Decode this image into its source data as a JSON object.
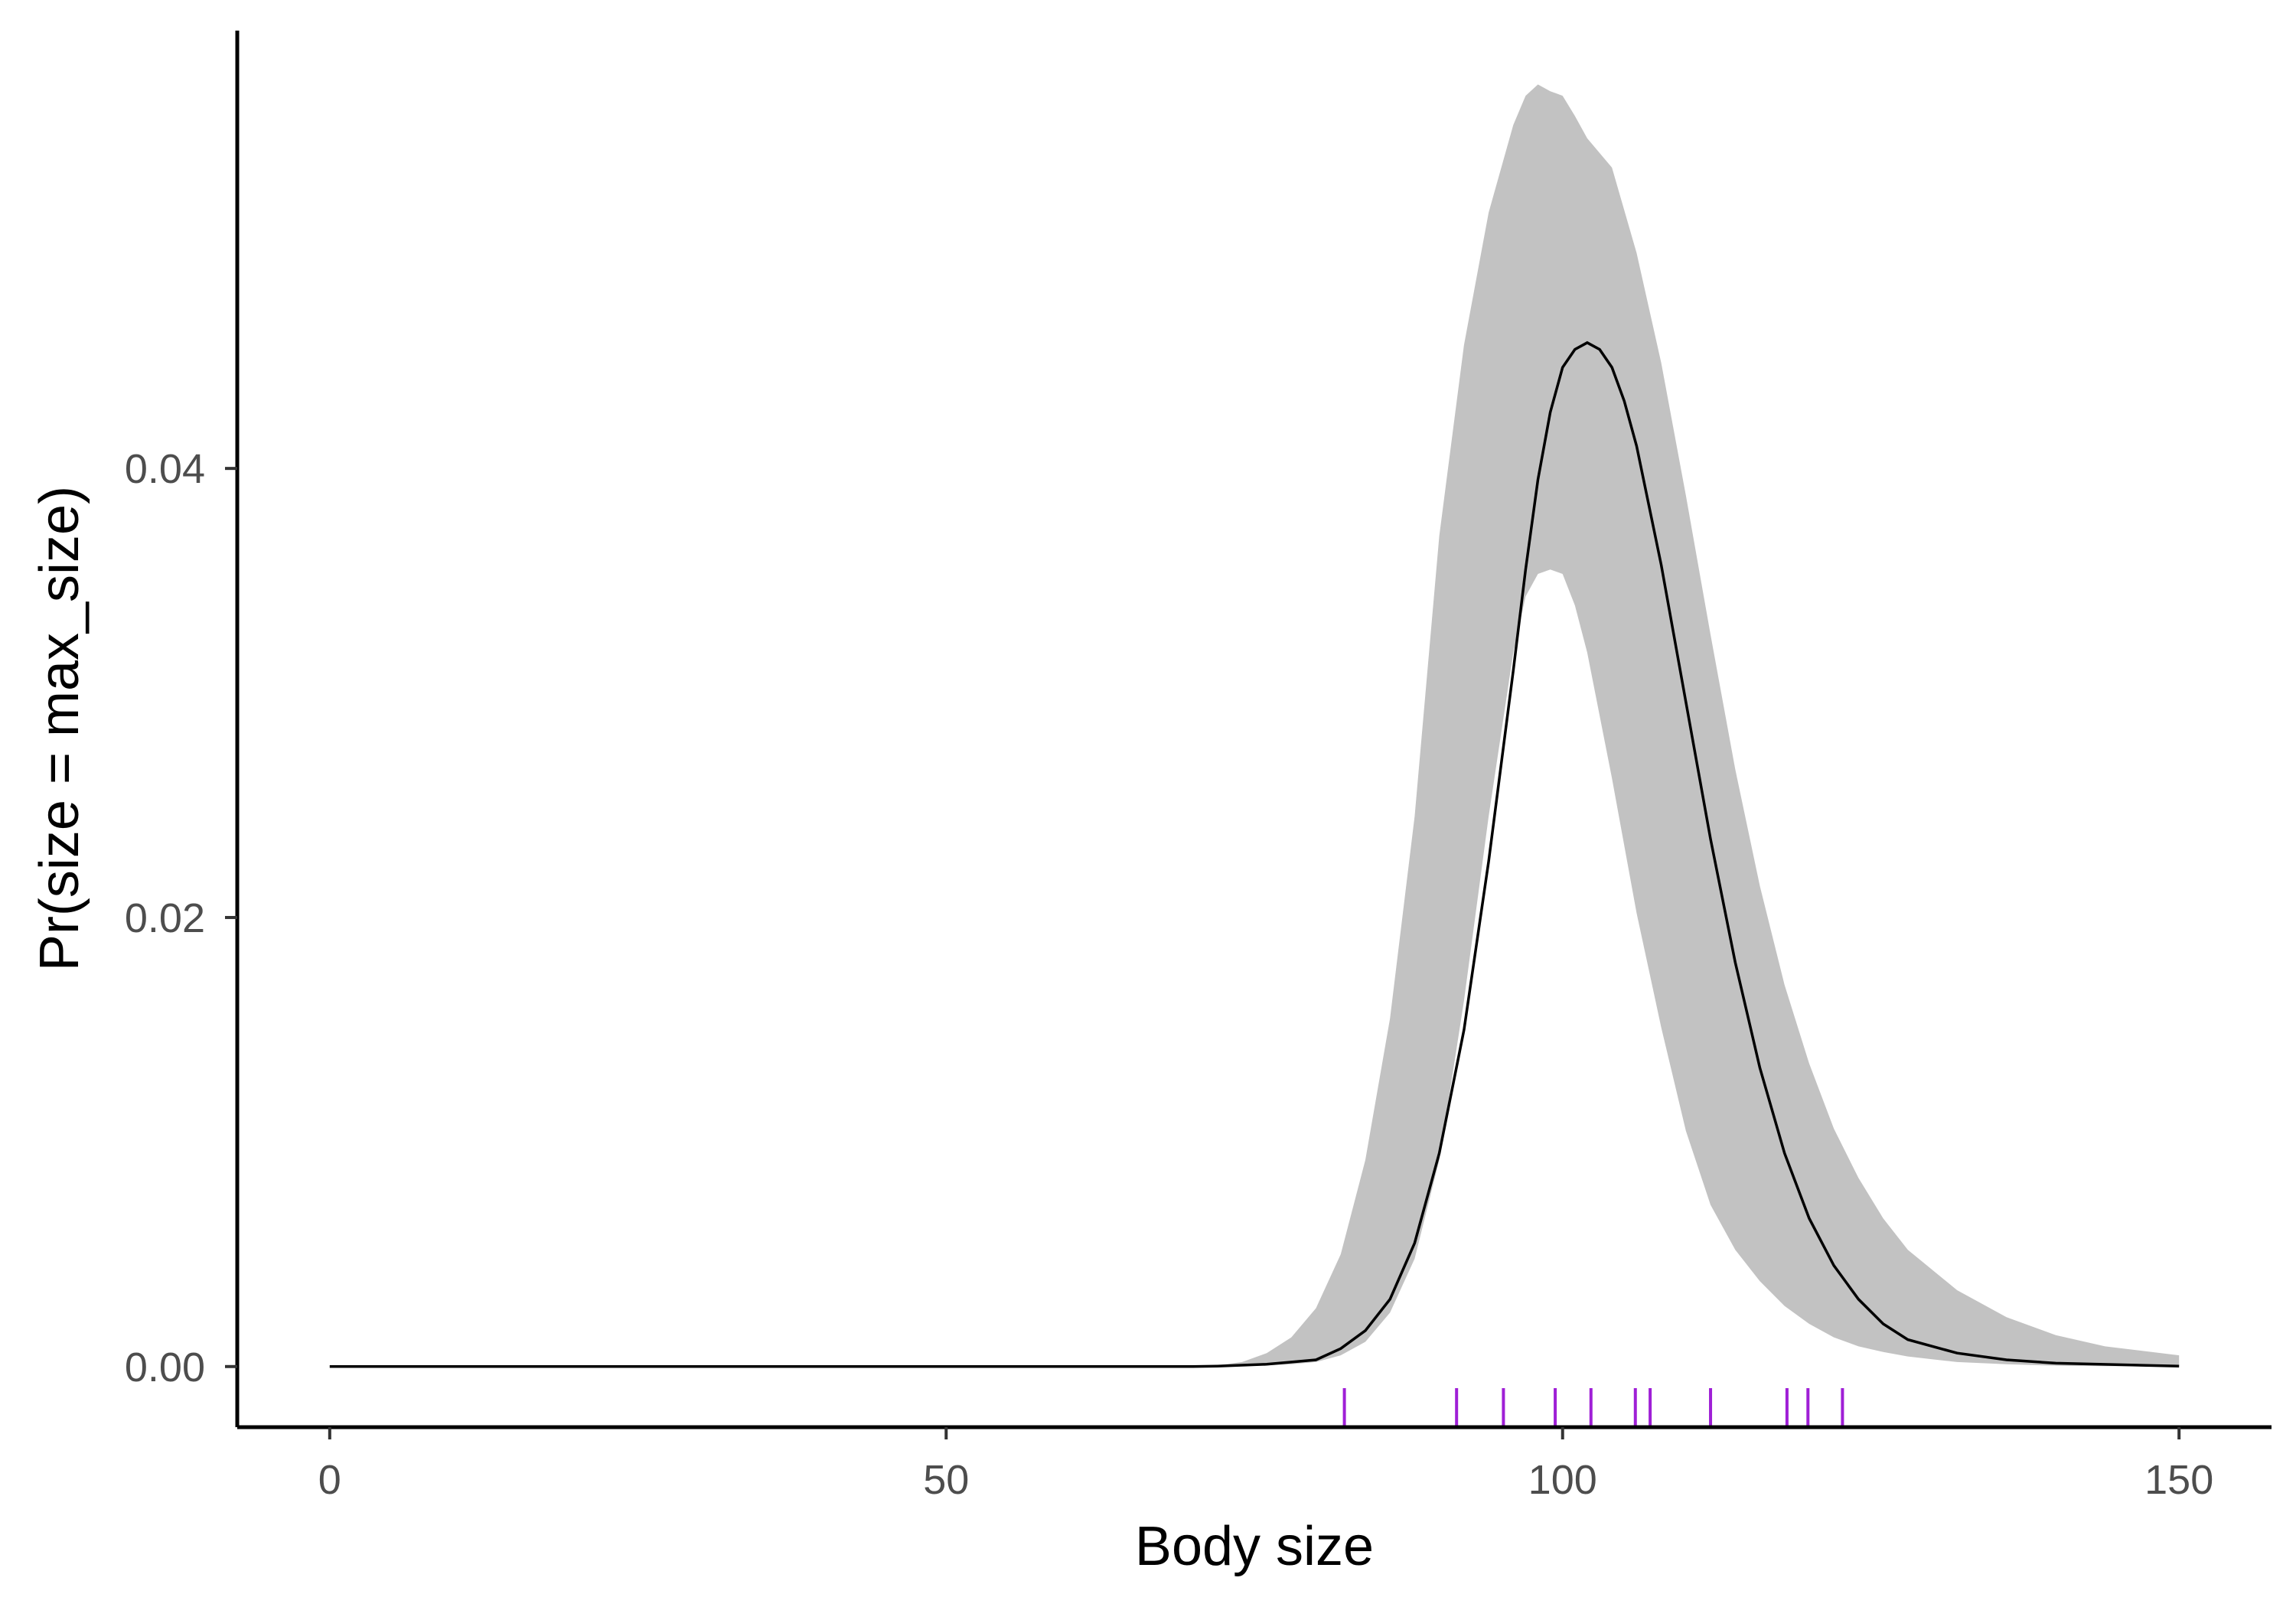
{
  "chart_data": {
    "type": "line",
    "xlabel": "Body size",
    "ylabel": "Pr(size = max_size)",
    "xlim": [
      -7.5,
      157.5
    ],
    "ylim": [
      -0.0027,
      0.0595
    ],
    "x_ticks": [
      0,
      50,
      100,
      150
    ],
    "x_tick_labels": [
      "0",
      "50",
      "100",
      "150"
    ],
    "y_ticks": [
      0.0,
      0.02,
      0.04
    ],
    "y_tick_labels": [
      "0.00",
      "0.02",
      "0.04"
    ],
    "grid": false,
    "legend": "none",
    "series": [
      {
        "role": "mean",
        "points": [
          [
            0,
            0
          ],
          [
            70,
            0
          ],
          [
            72,
            2e-05
          ],
          [
            76,
            0.0001
          ],
          [
            80,
            0.0003
          ],
          [
            82,
            0.0008
          ],
          [
            84,
            0.0016
          ],
          [
            86,
            0.003
          ],
          [
            88,
            0.0055
          ],
          [
            90,
            0.0095
          ],
          [
            92,
            0.015
          ],
          [
            94,
            0.0225
          ],
          [
            96,
            0.031
          ],
          [
            97,
            0.0355
          ],
          [
            98,
            0.0395
          ],
          [
            99,
            0.0425
          ],
          [
            100,
            0.0445
          ],
          [
            101,
            0.0453
          ],
          [
            102,
            0.0456
          ],
          [
            103,
            0.0453
          ],
          [
            104,
            0.0445
          ],
          [
            105,
            0.043
          ],
          [
            106,
            0.041
          ],
          [
            108,
            0.0357
          ],
          [
            110,
            0.0296
          ],
          [
            112,
            0.0235
          ],
          [
            114,
            0.018
          ],
          [
            116,
            0.0133
          ],
          [
            118,
            0.0095
          ],
          [
            120,
            0.0066
          ],
          [
            122,
            0.0045
          ],
          [
            124,
            0.003
          ],
          [
            126,
            0.0019
          ],
          [
            128,
            0.0012
          ],
          [
            132,
            0.0006
          ],
          [
            136,
            0.0003
          ],
          [
            140,
            0.00015
          ],
          [
            150,
            2e-05
          ]
        ]
      },
      {
        "role": "interval",
        "points": [
          [
            0,
            0,
            0
          ],
          [
            70,
            0,
            0
          ],
          [
            72,
            0,
            5e-05
          ],
          [
            74,
            2e-05,
            0.0002
          ],
          [
            76,
            5e-05,
            0.0006
          ],
          [
            78,
            0.0001,
            0.0013
          ],
          [
            80,
            0.0002,
            0.0026
          ],
          [
            82,
            0.0005,
            0.005
          ],
          [
            84,
            0.0011,
            0.0092
          ],
          [
            86,
            0.0024,
            0.0155
          ],
          [
            88,
            0.0048,
            0.0245
          ],
          [
            90,
            0.0092,
            0.037
          ],
          [
            92,
            0.0163,
            0.0455
          ],
          [
            94,
            0.0245,
            0.0514
          ],
          [
            96,
            0.0318,
            0.0553
          ],
          [
            97,
            0.0343,
            0.0566
          ],
          [
            98,
            0.0353,
            0.0571
          ],
          [
            99,
            0.0355,
            0.0568
          ],
          [
            100,
            0.0353,
            0.0566
          ],
          [
            101,
            0.0339,
            0.0557
          ],
          [
            102,
            0.0318,
            0.0547
          ],
          [
            104,
            0.0262,
            0.0534
          ],
          [
            106,
            0.0202,
            0.0496
          ],
          [
            108,
            0.0151,
            0.0447
          ],
          [
            110,
            0.0105,
            0.0388
          ],
          [
            112,
            0.0072,
            0.0326
          ],
          [
            114,
            0.0052,
            0.0266
          ],
          [
            116,
            0.0038,
            0.0214
          ],
          [
            118,
            0.0027,
            0.017
          ],
          [
            120,
            0.0019,
            0.0135
          ],
          [
            122,
            0.0013,
            0.0106
          ],
          [
            124,
            0.0009,
            0.0084
          ],
          [
            126,
            0.00065,
            0.0066
          ],
          [
            128,
            0.00045,
            0.0052
          ],
          [
            132,
            0.0002,
            0.0034
          ],
          [
            136,
            0.0001,
            0.0022
          ],
          [
            140,
            4e-05,
            0.0014
          ],
          [
            144,
            2e-05,
            0.0009
          ],
          [
            150,
            1e-05,
            0.0005
          ]
        ]
      }
    ],
    "rug": {
      "values": [
        82.3,
        91.4,
        95.2,
        99.4,
        102.3,
        105.9,
        107.1,
        112.0,
        118.2,
        119.9,
        122.7
      ],
      "color": "#9f1fd6"
    },
    "colors": {
      "interval_fill": "#c2c2c2",
      "mean_line": "#000000",
      "axis": "#000000",
      "tick_label": "#4d4d4d"
    }
  }
}
